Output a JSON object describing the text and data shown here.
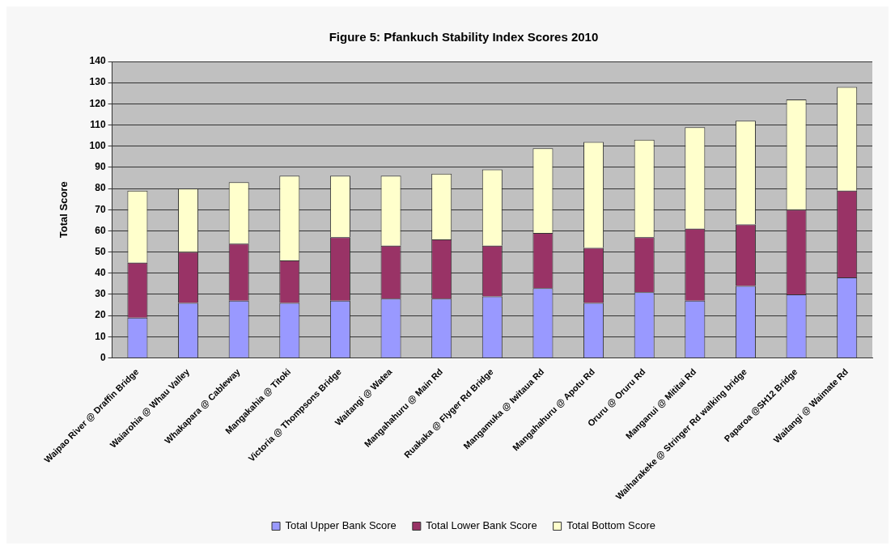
{
  "chart_data": {
    "type": "bar",
    "title": "Figure 5: Pfankuch Stability Index Scores 2010",
    "ylabel": "Total Score",
    "categories": [
      "Waipao River @ Draffin Bridge",
      "Waiarohia @ Whau Valley",
      "Whakapara @ Cableway",
      "Mangakahia @ Titoki",
      "Victoria @ Thompsons Bridge",
      "Waitangi @ Watea",
      "Mangahahuru @ Main Rd",
      "Ruakaka @ Flyger Rd Bridge",
      "Mangamuka @ Iwitaua Rd",
      "Mangahahuru @ Apotu Rd",
      "Oruru @ Oruru Rd",
      "Manganui @ Mititai Rd",
      "Waiharakeke @ Stringer Rd walking bridge",
      "Paparoa @SH12 Bridge",
      "Waitangi @ Waimate Rd"
    ],
    "series": [
      {
        "name": "Total Upper Bank Score",
        "color": "#9999ff",
        "values": [
          19,
          26,
          27,
          26,
          27,
          28,
          28,
          29,
          33,
          26,
          31,
          27,
          34,
          30,
          38
        ]
      },
      {
        "name": "Total Lower Bank Score",
        "color": "#993366",
        "values": [
          26,
          24,
          27,
          20,
          30,
          25,
          28,
          24,
          26,
          26,
          26,
          34,
          29,
          40,
          41
        ]
      },
      {
        "name": "Total Bottom Score",
        "color": "#ffffcc",
        "values": [
          34,
          30,
          29,
          40,
          29,
          33,
          31,
          36,
          40,
          50,
          46,
          48,
          49,
          52,
          49
        ]
      }
    ],
    "stacked": true,
    "ylim": [
      0,
      140
    ],
    "yticks": [
      0,
      10,
      20,
      30,
      40,
      50,
      60,
      70,
      80,
      90,
      100,
      110,
      120,
      130,
      140
    ],
    "grid": "y",
    "legend": "bottom"
  }
}
